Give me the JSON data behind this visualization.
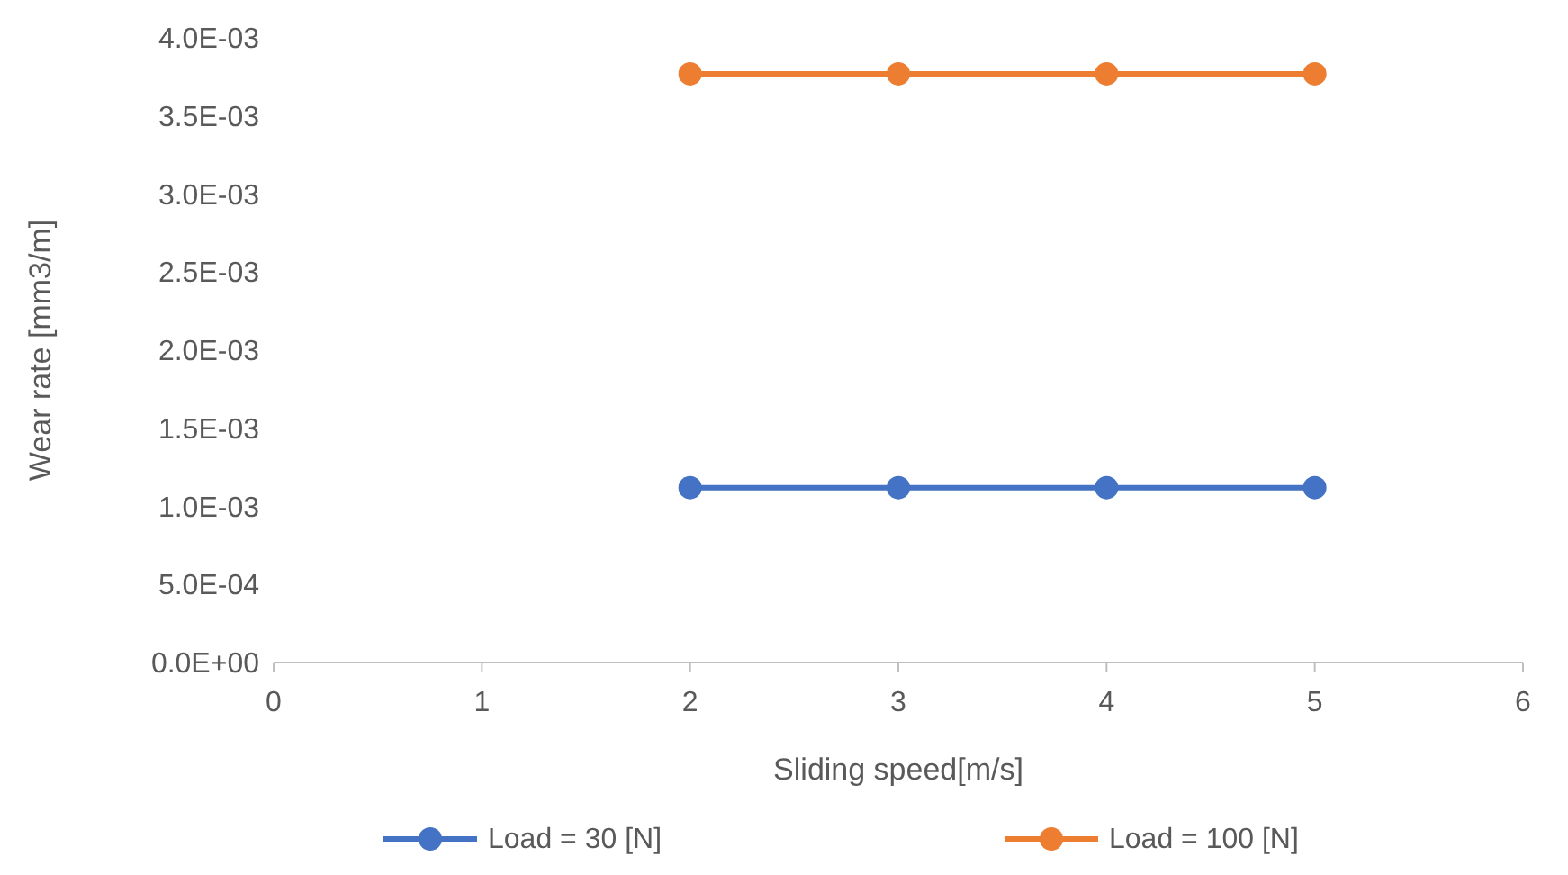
{
  "chart_data": {
    "type": "line",
    "xlabel": "Sliding speed[m/s]",
    "ylabel": "Wear rate [mm3/m]",
    "xlim": [
      0,
      6
    ],
    "xticks": [
      0,
      1,
      2,
      3,
      4,
      5,
      6
    ],
    "ylim": [
      0,
      0.004
    ],
    "yticks": [
      {
        "value": 0,
        "label": "0.0E+00"
      },
      {
        "value": 0.0005,
        "label": "5.0E-04"
      },
      {
        "value": 0.001,
        "label": "1.0E-03"
      },
      {
        "value": 0.0015,
        "label": "1.5E-03"
      },
      {
        "value": 0.002,
        "label": "2.0E-03"
      },
      {
        "value": 0.0025,
        "label": "2.5E-03"
      },
      {
        "value": 0.003,
        "label": "3.0E-03"
      },
      {
        "value": 0.0035,
        "label": "3.5E-03"
      },
      {
        "value": 0.004,
        "label": "4.0E-03"
      }
    ],
    "x": [
      2,
      3,
      4,
      5
    ],
    "series": [
      {
        "name": "Load = 30 [N]",
        "color": "#4472c4",
        "values": [
          0.00112,
          0.00112,
          0.00112,
          0.00112
        ]
      },
      {
        "name": "Load = 100 [N]",
        "color": "#ed7d31",
        "values": [
          0.00377,
          0.00377,
          0.00377,
          0.00377
        ]
      }
    ],
    "grid": false,
    "legend": "bottom",
    "marker": "circle",
    "line_style": "solid"
  }
}
